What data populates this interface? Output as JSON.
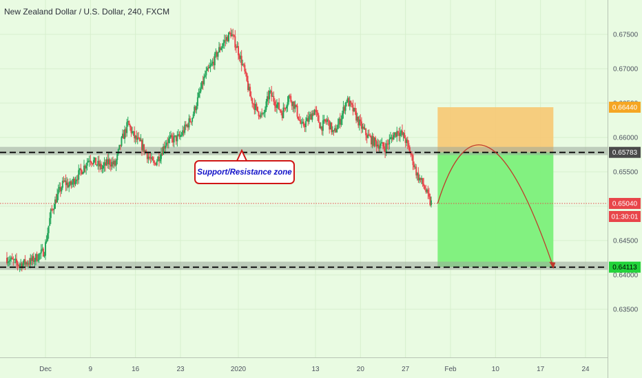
{
  "title": "New Zealand Dollar / U.S. Dollar, 240, FXCM",
  "annotation": "Support/Resistance zone",
  "colors": {
    "up": "#26a65b",
    "down": "#e8454a",
    "entry_line": "#e34a4a",
    "stop_zone": "#f7c873",
    "target_zone": "#7cf07a",
    "arrow": "#c0392b",
    "sr_band": "#9aa79a"
  },
  "chart_data": {
    "type": "candlestick",
    "x_ticks": [
      "Dec",
      "9",
      "16",
      "23",
      "2020",
      "13",
      "20",
      "27",
      "Feb",
      "10",
      "17",
      "24"
    ],
    "y_ticks": [
      "0.67500",
      "0.67000",
      "0.66500",
      "0.66000",
      "0.65500",
      "0.65000",
      "0.64500",
      "0.64000",
      "0.63500"
    ],
    "ylim": [
      0.632,
      0.6775
    ],
    "last_price": "0.65040",
    "countdown": "01:30:01",
    "levels": {
      "stop": "0.66440",
      "resistance": "0.65783",
      "target": "0.64113"
    },
    "sr_zones": [
      0.65783,
      0.64113
    ],
    "path": [
      {
        "date": "2019-11-26",
        "price": 0.6425
      },
      {
        "date": "2019-11-28",
        "price": 0.6415
      },
      {
        "date": "2019-11-30",
        "price": 0.642
      },
      {
        "date": "2019-12-02",
        "price": 0.6435
      },
      {
        "date": "2019-12-03",
        "price": 0.649
      },
      {
        "date": "2019-12-04",
        "price": 0.6515
      },
      {
        "date": "2019-12-05",
        "price": 0.6535
      },
      {
        "date": "2019-12-06",
        "price": 0.653
      },
      {
        "date": "2019-12-08",
        "price": 0.6555
      },
      {
        "date": "2019-12-09",
        "price": 0.657
      },
      {
        "date": "2019-12-11",
        "price": 0.6555
      },
      {
        "date": "2019-12-12",
        "price": 0.6565
      },
      {
        "date": "2019-12-13",
        "price": 0.656
      },
      {
        "date": "2019-12-14",
        "price": 0.6595
      },
      {
        "date": "2019-12-15",
        "price": 0.662
      },
      {
        "date": "2019-12-16",
        "price": 0.66
      },
      {
        "date": "2019-12-17",
        "price": 0.659
      },
      {
        "date": "2019-12-18",
        "price": 0.6575
      },
      {
        "date": "2019-12-19",
        "price": 0.656
      },
      {
        "date": "2019-12-20",
        "price": 0.6575
      },
      {
        "date": "2019-12-21",
        "price": 0.6595
      },
      {
        "date": "2019-12-23",
        "price": 0.66
      },
      {
        "date": "2019-12-25",
        "price": 0.663
      },
      {
        "date": "2019-12-26",
        "price": 0.666
      },
      {
        "date": "2019-12-27",
        "price": 0.669
      },
      {
        "date": "2019-12-28",
        "price": 0.6705
      },
      {
        "date": "2019-12-29",
        "price": 0.6725
      },
      {
        "date": "2019-12-30",
        "price": 0.674
      },
      {
        "date": "2019-12-31",
        "price": 0.6752
      },
      {
        "date": "2020-01-01",
        "price": 0.673
      },
      {
        "date": "2020-01-02",
        "price": 0.67
      },
      {
        "date": "2020-01-03",
        "price": 0.666
      },
      {
        "date": "2020-01-04",
        "price": 0.664
      },
      {
        "date": "2020-01-05",
        "price": 0.663
      },
      {
        "date": "2020-01-06",
        "price": 0.6665
      },
      {
        "date": "2020-01-07",
        "price": 0.665
      },
      {
        "date": "2020-01-08",
        "price": 0.6635
      },
      {
        "date": "2020-01-09",
        "price": 0.666
      },
      {
        "date": "2020-01-10",
        "price": 0.6645
      },
      {
        "date": "2020-01-11",
        "price": 0.6615
      },
      {
        "date": "2020-01-12",
        "price": 0.6625
      },
      {
        "date": "2020-01-13",
        "price": 0.664
      },
      {
        "date": "2020-01-14",
        "price": 0.6615
      },
      {
        "date": "2020-01-15",
        "price": 0.6625
      },
      {
        "date": "2020-01-16",
        "price": 0.6605
      },
      {
        "date": "2020-01-17",
        "price": 0.6625
      },
      {
        "date": "2020-01-18",
        "price": 0.6655
      },
      {
        "date": "2020-01-19",
        "price": 0.664
      },
      {
        "date": "2020-01-20",
        "price": 0.662
      },
      {
        "date": "2020-01-21",
        "price": 0.6605
      },
      {
        "date": "2020-01-22",
        "price": 0.6595
      },
      {
        "date": "2020-01-23",
        "price": 0.659
      },
      {
        "date": "2020-01-24",
        "price": 0.6585
      },
      {
        "date": "2020-01-25",
        "price": 0.66
      },
      {
        "date": "2020-01-26",
        "price": 0.661
      },
      {
        "date": "2020-01-27",
        "price": 0.66
      },
      {
        "date": "2020-01-28",
        "price": 0.6575
      },
      {
        "date": "2020-01-29",
        "price": 0.6545
      },
      {
        "date": "2020-01-30",
        "price": 0.653
      },
      {
        "date": "2020-01-31",
        "price": 0.6505
      }
    ],
    "projection": [
      {
        "date": "2020-02-01",
        "price": 0.6504
      },
      {
        "date": "2020-02-09",
        "price": 0.6585
      },
      {
        "date": "2020-02-19",
        "price": 0.6411
      }
    ],
    "zone_dates": [
      "2020-02-01",
      "2020-02-19"
    ],
    "grid": true
  }
}
